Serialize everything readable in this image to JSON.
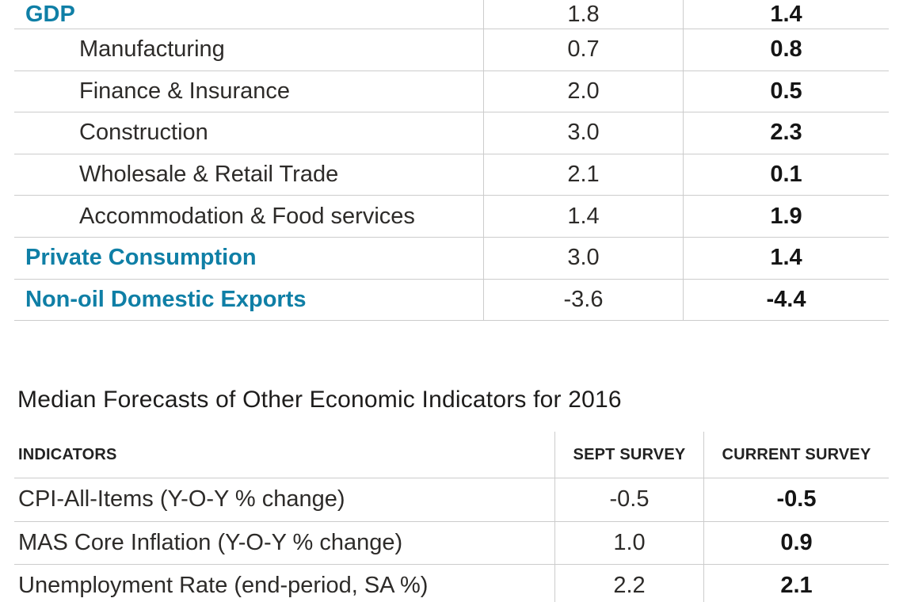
{
  "accent_color": "#0f7fa6",
  "line_color": "#cccccc",
  "chart_data": [
    {
      "type": "table",
      "rows": [
        {
          "label": "GDP",
          "sept": "1.8",
          "current": "1.4"
        },
        {
          "label": "Manufacturing",
          "sept": "0.7",
          "current": "0.8"
        },
        {
          "label": "Finance & Insurance",
          "sept": "2.0",
          "current": "0.5"
        },
        {
          "label": "Construction",
          "sept": "3.0",
          "current": "2.3"
        },
        {
          "label": "Wholesale & Retail Trade",
          "sept": "2.1",
          "current": "0.1"
        },
        {
          "label": "Accommodation & Food services",
          "sept": "1.4",
          "current": "1.9"
        },
        {
          "label": "Private Consumption",
          "sept": "3.0",
          "current": "1.4"
        },
        {
          "label": "Non-oil Domestic Exports",
          "sept": "-3.6",
          "current": "-4.4"
        }
      ]
    },
    {
      "type": "table",
      "title": "Median Forecasts of Other Economic Indicators for 2016",
      "columns": [
        "INDICATORS",
        "SEPT SURVEY",
        "CURRENT SURVEY"
      ],
      "rows": [
        {
          "label": "CPI-All-Items (Y-O-Y % change)",
          "sept": "-0.5",
          "current": "-0.5"
        },
        {
          "label": "MAS Core Inflation (Y-O-Y % change)",
          "sept": "1.0",
          "current": "0.9"
        },
        {
          "label": "Unemployment Rate (end-period, SA %)",
          "sept": "2.2",
          "current": "2.1"
        }
      ]
    }
  ]
}
